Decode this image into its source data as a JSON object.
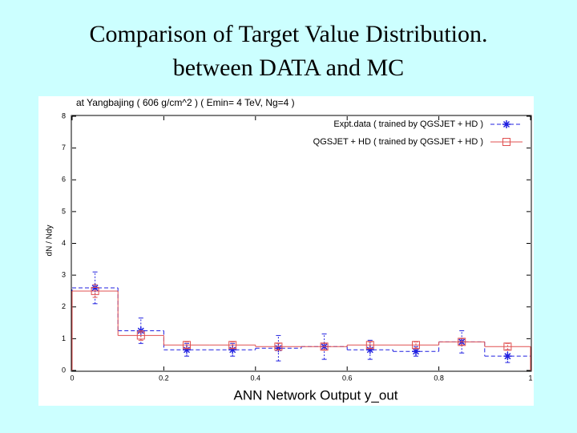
{
  "slide": {
    "title_lines": [
      "Comparison of Target Value Distribution.",
      "between DATA and MC"
    ]
  },
  "chart_data": {
    "type": "histogram",
    "header": "at Yangbajing ( 606 g/cm^2 ) ( Emin= 4 TeV, Ng=4 )",
    "xlabel": "ANN Network Output y_out",
    "ylabel": "dN / Ndy",
    "bins": [
      0,
      0.1,
      0.2,
      0.3,
      0.4,
      0.5,
      0.6,
      0.7,
      0.8,
      0.9,
      1
    ],
    "series": [
      {
        "name": "Expt.data ( trained by QGSJET + HD )",
        "color": "#2020e0",
        "marker": "star",
        "dashed": true,
        "values": [
          2.6,
          1.25,
          0.65,
          0.65,
          0.7,
          0.75,
          0.65,
          0.6,
          0.9,
          0.45
        ],
        "errors": [
          0.5,
          0.4,
          0.2,
          0.2,
          0.4,
          0.4,
          0.3,
          0.15,
          0.35,
          0.2
        ]
      },
      {
        "name": "QGSJET + HD ( trained by QGSJET + HD )",
        "color": "#e05050",
        "marker": "square",
        "dashed": false,
        "values": [
          2.5,
          1.1,
          0.8,
          0.8,
          0.75,
          0.75,
          0.8,
          0.8,
          0.9,
          0.75
        ],
        "errors": [
          0.2,
          0.15,
          0.1,
          0.1,
          0.1,
          0.1,
          0.1,
          0.1,
          0.1,
          0.1
        ]
      }
    ],
    "xlim": [
      0,
      1
    ],
    "xticks": [
      0,
      0.2,
      0.4,
      0.6,
      0.8,
      1
    ],
    "ylim": [
      0,
      8
    ],
    "yticks": [
      0,
      1,
      2,
      3,
      4,
      5,
      6,
      7,
      8
    ]
  }
}
